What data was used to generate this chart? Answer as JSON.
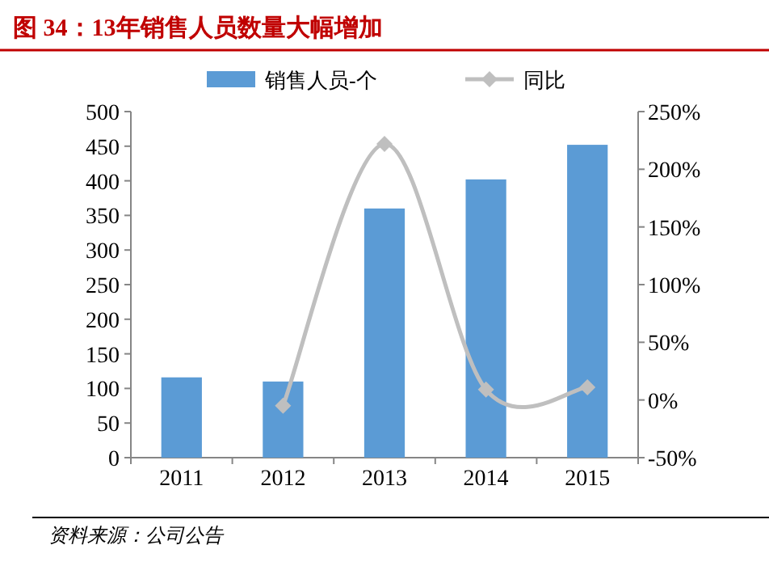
{
  "chart_data": {
    "type": "bar",
    "title": "图 34：13年销售人员数量大幅增加",
    "categories": [
      "2011",
      "2012",
      "2013",
      "2014",
      "2015"
    ],
    "series": [
      {
        "name": "销售人员-个",
        "color": "#5b9bd5",
        "values": [
          116,
          110,
          360,
          402,
          452
        ]
      },
      {
        "name": "同比",
        "type": "line",
        "axis": "y2",
        "color": "#bfbfbf",
        "marker": "diamond",
        "values": [
          null,
          -5,
          222,
          9,
          11
        ]
      }
    ],
    "ylim": [
      0,
      500
    ],
    "yticks": [
      0,
      50,
      100,
      150,
      200,
      250,
      300,
      350,
      400,
      450,
      500
    ],
    "y2lim": [
      -50,
      250
    ],
    "y2ticks": [
      {
        "value": -50,
        "label": "-50%"
      },
      {
        "value": 0,
        "label": "0%"
      },
      {
        "value": 50,
        "label": "50%"
      },
      {
        "value": 100,
        "label": "100%"
      },
      {
        "value": 150,
        "label": "150%"
      },
      {
        "value": 200,
        "label": "200%"
      },
      {
        "value": 250,
        "label": "250%"
      }
    ],
    "legend": "top",
    "grid": false,
    "annotations": [
      "资料来源：公司公告"
    ]
  }
}
